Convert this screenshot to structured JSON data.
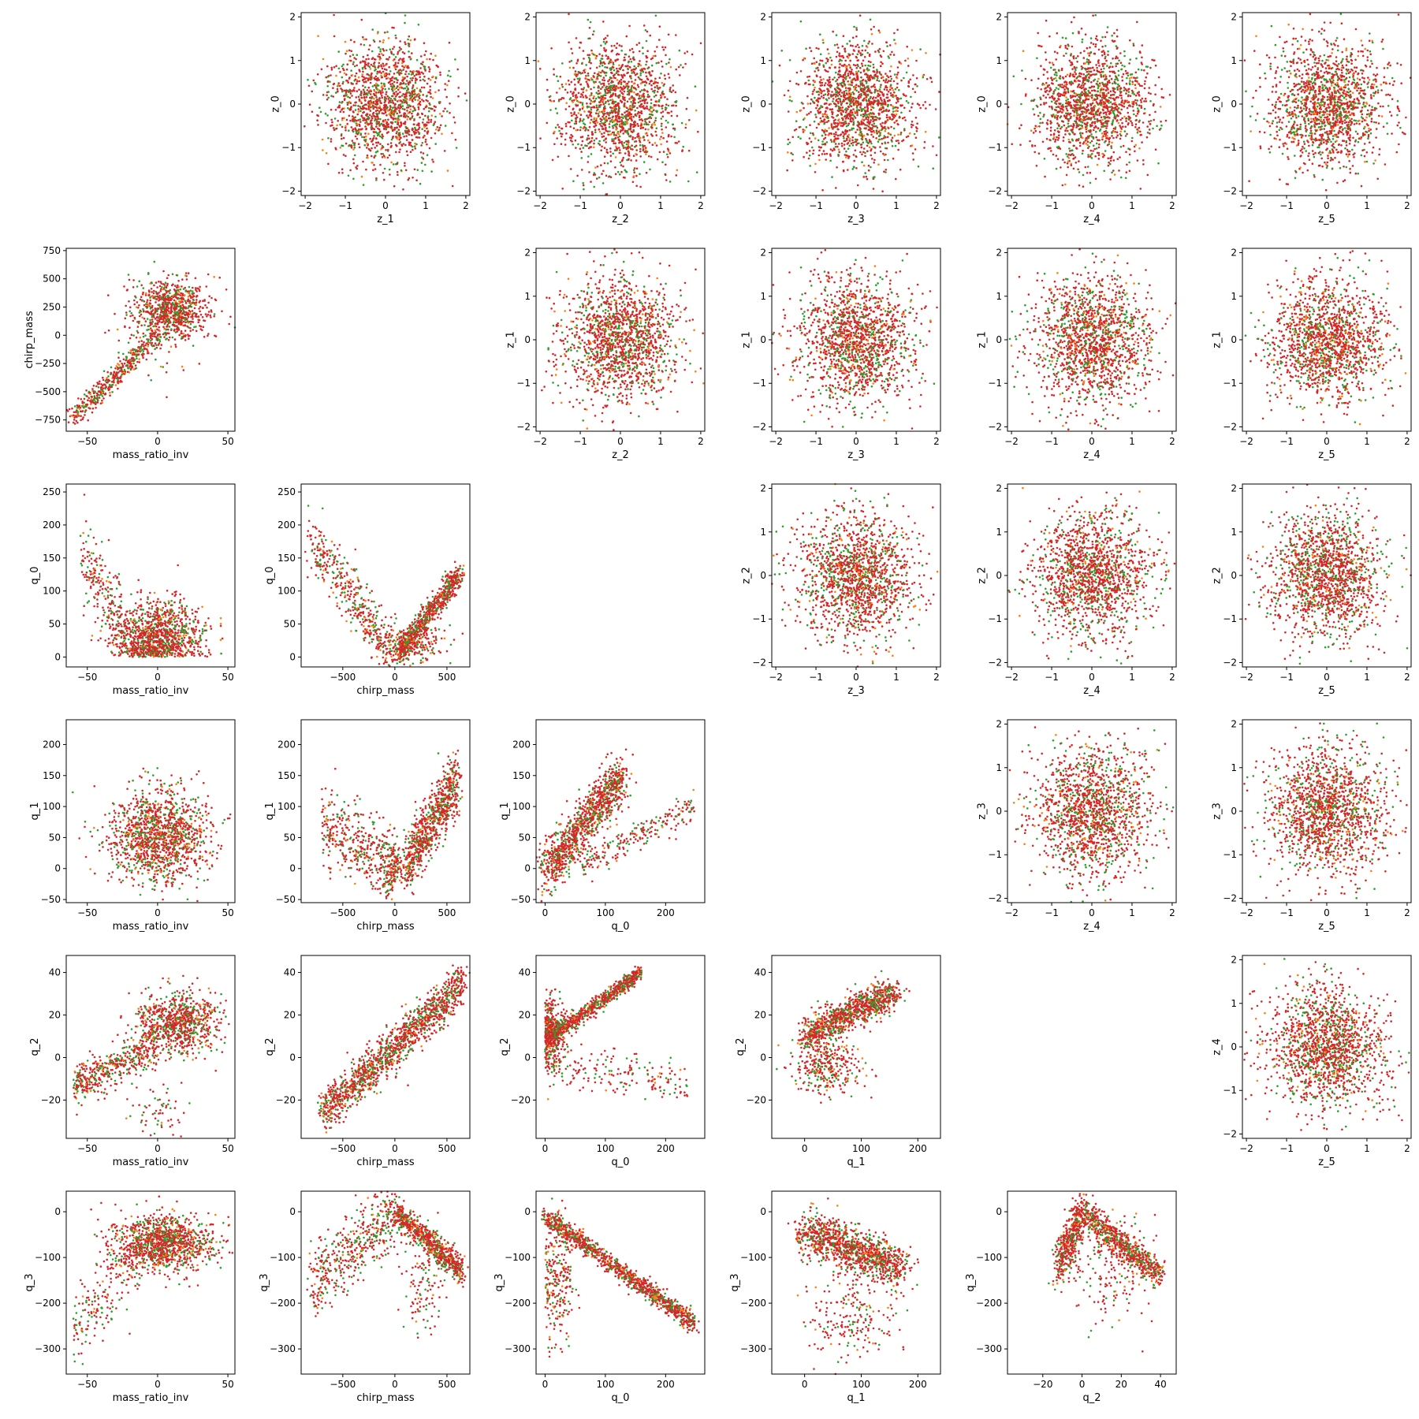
{
  "figure": {
    "type": "scatter-matrix",
    "colors": {
      "red": "#d62728",
      "green": "#2ca02c",
      "orange": "#ff7f0e",
      "axis": "#000000",
      "background": "#ffffff"
    }
  },
  "chart_data": [
    {
      "id": "p01",
      "type": "scatter",
      "row": 0,
      "col": 1,
      "xlabel": "z_1",
      "ylabel": "z_0",
      "xlim": [
        -2.1,
        2.1
      ],
      "ylim": [
        -2.1,
        2.1
      ],
      "xticks": [
        -2,
        -1,
        0,
        1,
        2
      ],
      "yticks": [
        -2,
        -1,
        0,
        1,
        2
      ],
      "shape": "gauss",
      "params": {
        "sx": 0.72,
        "sy": 0.72
      },
      "n": 1500,
      "seed": 11
    },
    {
      "id": "p02",
      "type": "scatter",
      "row": 0,
      "col": 2,
      "xlabel": "z_2",
      "ylabel": "z_0",
      "xlim": [
        -2.1,
        2.1
      ],
      "ylim": [
        -2.1,
        2.1
      ],
      "xticks": [
        -2,
        -1,
        0,
        1,
        2
      ],
      "yticks": [
        -2,
        -1,
        0,
        1,
        2
      ],
      "shape": "gauss",
      "params": {
        "sx": 0.72,
        "sy": 0.72
      },
      "n": 1500,
      "seed": 12
    },
    {
      "id": "p03",
      "type": "scatter",
      "row": 0,
      "col": 3,
      "xlabel": "z_3",
      "ylabel": "z_0",
      "xlim": [
        -2.1,
        2.1
      ],
      "ylim": [
        -2.1,
        2.1
      ],
      "xticks": [
        -2,
        -1,
        0,
        1,
        2
      ],
      "yticks": [
        -2,
        -1,
        0,
        1,
        2
      ],
      "shape": "gauss",
      "params": {
        "sx": 0.72,
        "sy": 0.72
      },
      "n": 1500,
      "seed": 13
    },
    {
      "id": "p04",
      "type": "scatter",
      "row": 0,
      "col": 4,
      "xlabel": "z_4",
      "ylabel": "z_0",
      "xlim": [
        -2.1,
        2.1
      ],
      "ylim": [
        -2.1,
        2.1
      ],
      "xticks": [
        -2,
        -1,
        0,
        1,
        2
      ],
      "yticks": [
        -2,
        -1,
        0,
        1,
        2
      ],
      "shape": "gauss",
      "params": {
        "sx": 0.72,
        "sy": 0.72
      },
      "n": 1500,
      "seed": 14
    },
    {
      "id": "p05",
      "type": "scatter",
      "row": 0,
      "col": 5,
      "xlabel": "z_5",
      "ylabel": "z_0",
      "xlim": [
        -2.1,
        2.1
      ],
      "ylim": [
        -2.1,
        2.1
      ],
      "xticks": [
        -2,
        -1,
        0,
        1,
        2
      ],
      "yticks": [
        -2,
        -1,
        0,
        1,
        2
      ],
      "shape": "gauss",
      "params": {
        "sx": 0.72,
        "sy": 0.72
      },
      "n": 1500,
      "seed": 15
    },
    {
      "id": "p10",
      "type": "scatter",
      "row": 1,
      "col": 0,
      "xlabel": "mass_ratio_inv",
      "ylabel": "chirp_mass",
      "xlim": [
        -65,
        55
      ],
      "ylim": [
        -850,
        770
      ],
      "xticks": [
        -50,
        0,
        50
      ],
      "yticks": [
        -750,
        -500,
        -250,
        0,
        250,
        500,
        750
      ],
      "shape": "mr_chirp",
      "n": 1300,
      "seed": 21
    },
    {
      "id": "p12",
      "type": "scatter",
      "row": 1,
      "col": 2,
      "xlabel": "z_2",
      "ylabel": "z_1",
      "xlim": [
        -2.1,
        2.1
      ],
      "ylim": [
        -2.1,
        2.1
      ],
      "xticks": [
        -2,
        -1,
        0,
        1,
        2
      ],
      "yticks": [
        -2,
        -1,
        0,
        1,
        2
      ],
      "shape": "gauss",
      "params": {
        "sx": 0.72,
        "sy": 0.72
      },
      "n": 1500,
      "seed": 22
    },
    {
      "id": "p13",
      "type": "scatter",
      "row": 1,
      "col": 3,
      "xlabel": "z_3",
      "ylabel": "z_1",
      "xlim": [
        -2.1,
        2.1
      ],
      "ylim": [
        -2.1,
        2.1
      ],
      "xticks": [
        -2,
        -1,
        0,
        1,
        2
      ],
      "yticks": [
        -2,
        -1,
        0,
        1,
        2
      ],
      "shape": "gauss",
      "params": {
        "sx": 0.72,
        "sy": 0.72
      },
      "n": 1500,
      "seed": 23
    },
    {
      "id": "p14",
      "type": "scatter",
      "row": 1,
      "col": 4,
      "xlabel": "z_4",
      "ylabel": "z_1",
      "xlim": [
        -2.1,
        2.1
      ],
      "ylim": [
        -2.1,
        2.1
      ],
      "xticks": [
        -2,
        -1,
        0,
        1,
        2
      ],
      "yticks": [
        -2,
        -1,
        0,
        1,
        2
      ],
      "shape": "gauss",
      "params": {
        "sx": 0.72,
        "sy": 0.72
      },
      "n": 1500,
      "seed": 24
    },
    {
      "id": "p15",
      "type": "scatter",
      "row": 1,
      "col": 5,
      "xlabel": "z_5",
      "ylabel": "z_1",
      "xlim": [
        -2.1,
        2.1
      ],
      "ylim": [
        -2.1,
        2.1
      ],
      "xticks": [
        -2,
        -1,
        0,
        1,
        2
      ],
      "yticks": [
        -2,
        -1,
        0,
        1,
        2
      ],
      "shape": "gauss",
      "params": {
        "sx": 0.72,
        "sy": 0.72
      },
      "n": 1500,
      "seed": 25
    },
    {
      "id": "p20",
      "type": "scatter",
      "row": 2,
      "col": 0,
      "xlabel": "mass_ratio_inv",
      "ylabel": "q_0",
      "xlim": [
        -65,
        55
      ],
      "ylim": [
        -15,
        262
      ],
      "xticks": [
        -50,
        0,
        50
      ],
      "yticks": [
        0,
        50,
        100,
        150,
        200,
        250
      ],
      "shape": "mr_q0",
      "n": 1300,
      "seed": 31
    },
    {
      "id": "p21",
      "type": "scatter",
      "row": 2,
      "col": 1,
      "xlabel": "chirp_mass",
      "ylabel": "q_0",
      "xlim": [
        -900,
        720
      ],
      "ylim": [
        -15,
        262
      ],
      "xticks": [
        -500,
        0,
        500
      ],
      "yticks": [
        0,
        50,
        100,
        150,
        200,
        250
      ],
      "shape": "chirp_q0",
      "n": 1300,
      "seed": 32
    },
    {
      "id": "p23",
      "type": "scatter",
      "row": 2,
      "col": 3,
      "xlabel": "z_3",
      "ylabel": "z_2",
      "xlim": [
        -2.1,
        2.1
      ],
      "ylim": [
        -2.1,
        2.1
      ],
      "xticks": [
        -2,
        -1,
        0,
        1,
        2
      ],
      "yticks": [
        -2,
        -1,
        0,
        1,
        2
      ],
      "shape": "gauss",
      "params": {
        "sx": 0.72,
        "sy": 0.72
      },
      "n": 1500,
      "seed": 33
    },
    {
      "id": "p24",
      "type": "scatter",
      "row": 2,
      "col": 4,
      "xlabel": "z_4",
      "ylabel": "z_2",
      "xlim": [
        -2.1,
        2.1
      ],
      "ylim": [
        -2.1,
        2.1
      ],
      "xticks": [
        -2,
        -1,
        0,
        1,
        2
      ],
      "yticks": [
        -2,
        -1,
        0,
        1,
        2
      ],
      "shape": "gauss",
      "params": {
        "sx": 0.72,
        "sy": 0.72
      },
      "n": 1500,
      "seed": 34
    },
    {
      "id": "p25",
      "type": "scatter",
      "row": 2,
      "col": 5,
      "xlabel": "z_5",
      "ylabel": "z_2",
      "xlim": [
        -2.1,
        2.1
      ],
      "ylim": [
        -2.1,
        2.1
      ],
      "xticks": [
        -2,
        -1,
        0,
        1,
        2
      ],
      "yticks": [
        -2,
        -1,
        0,
        1,
        2
      ],
      "shape": "gauss",
      "params": {
        "sx": 0.72,
        "sy": 0.72
      },
      "n": 1500,
      "seed": 35
    },
    {
      "id": "p30",
      "type": "scatter",
      "row": 3,
      "col": 0,
      "xlabel": "mass_ratio_inv",
      "ylabel": "q_1",
      "xlim": [
        -65,
        55
      ],
      "ylim": [
        -55,
        240
      ],
      "xticks": [
        -50,
        0,
        50
      ],
      "yticks": [
        -50,
        0,
        50,
        100,
        150,
        200
      ],
      "shape": "mr_q1",
      "n": 1300,
      "seed": 41
    },
    {
      "id": "p31",
      "type": "scatter",
      "row": 3,
      "col": 1,
      "xlabel": "chirp_mass",
      "ylabel": "q_1",
      "xlim": [
        -900,
        720
      ],
      "ylim": [
        -55,
        240
      ],
      "xticks": [
        -500,
        0,
        500
      ],
      "yticks": [
        -50,
        0,
        50,
        100,
        150,
        200
      ],
      "shape": "chirp_q1",
      "n": 1300,
      "seed": 42
    },
    {
      "id": "p32",
      "type": "scatter",
      "row": 3,
      "col": 2,
      "xlabel": "q_0",
      "ylabel": "q_1",
      "xlim": [
        -15,
        265
      ],
      "ylim": [
        -55,
        240
      ],
      "xticks": [
        0,
        100,
        200
      ],
      "yticks": [
        -50,
        0,
        50,
        100,
        150,
        200
      ],
      "shape": "q0_q1",
      "n": 1300,
      "seed": 43
    },
    {
      "id": "p34",
      "type": "scatter",
      "row": 3,
      "col": 4,
      "xlabel": "z_4",
      "ylabel": "z_3",
      "xlim": [
        -2.1,
        2.1
      ],
      "ylim": [
        -2.1,
        2.1
      ],
      "xticks": [
        -2,
        -1,
        0,
        1,
        2
      ],
      "yticks": [
        -2,
        -1,
        0,
        1,
        2
      ],
      "shape": "gauss",
      "params": {
        "sx": 0.72,
        "sy": 0.72
      },
      "n": 1500,
      "seed": 44
    },
    {
      "id": "p35",
      "type": "scatter",
      "row": 3,
      "col": 5,
      "xlabel": "z_5",
      "ylabel": "z_3",
      "xlim": [
        -2.1,
        2.1
      ],
      "ylim": [
        -2.1,
        2.1
      ],
      "xticks": [
        -2,
        -1,
        0,
        1,
        2
      ],
      "yticks": [
        -2,
        -1,
        0,
        1,
        2
      ],
      "shape": "gauss",
      "params": {
        "sx": 0.72,
        "sy": 0.72
      },
      "n": 1500,
      "seed": 45
    },
    {
      "id": "p40",
      "type": "scatter",
      "row": 4,
      "col": 0,
      "xlabel": "mass_ratio_inv",
      "ylabel": "q_2",
      "xlim": [
        -65,
        55
      ],
      "ylim": [
        -38,
        48
      ],
      "xticks": [
        -50,
        0,
        50
      ],
      "yticks": [
        -20,
        0,
        20,
        40
      ],
      "shape": "mr_q2",
      "n": 1300,
      "seed": 51
    },
    {
      "id": "p41",
      "type": "scatter",
      "row": 4,
      "col": 1,
      "xlabel": "chirp_mass",
      "ylabel": "q_2",
      "xlim": [
        -900,
        720
      ],
      "ylim": [
        -38,
        48
      ],
      "xticks": [
        -500,
        0,
        500
      ],
      "yticks": [
        -20,
        0,
        20,
        40
      ],
      "shape": "chirp_q2",
      "n": 1300,
      "seed": 52
    },
    {
      "id": "p42",
      "type": "scatter",
      "row": 4,
      "col": 2,
      "xlabel": "q_0",
      "ylabel": "q_2",
      "xlim": [
        -15,
        265
      ],
      "ylim": [
        -38,
        48
      ],
      "xticks": [
        0,
        100,
        200
      ],
      "yticks": [
        -20,
        0,
        20,
        40
      ],
      "shape": "q0_q2",
      "n": 1300,
      "seed": 53
    },
    {
      "id": "p43",
      "type": "scatter",
      "row": 4,
      "col": 3,
      "xlabel": "q_1",
      "ylabel": "q_2",
      "xlim": [
        -58,
        240
      ],
      "ylim": [
        -38,
        48
      ],
      "xticks": [
        0,
        100,
        200
      ],
      "yticks": [
        -20,
        0,
        20,
        40
      ],
      "shape": "q1_q2",
      "n": 1300,
      "seed": 54
    },
    {
      "id": "p45",
      "type": "scatter",
      "row": 4,
      "col": 5,
      "xlabel": "z_5",
      "ylabel": "z_4",
      "xlim": [
        -2.1,
        2.1
      ],
      "ylim": [
        -2.1,
        2.1
      ],
      "xticks": [
        -2,
        -1,
        0,
        1,
        2
      ],
      "yticks": [
        -2,
        -1,
        0,
        1,
        2
      ],
      "shape": "gauss",
      "params": {
        "sx": 0.72,
        "sy": 0.72
      },
      "n": 1500,
      "seed": 55
    },
    {
      "id": "p50",
      "type": "scatter",
      "row": 5,
      "col": 0,
      "xlabel": "mass_ratio_inv",
      "ylabel": "q_3",
      "xlim": [
        -65,
        55
      ],
      "ylim": [
        -355,
        45
      ],
      "xticks": [
        -50,
        0,
        50
      ],
      "yticks": [
        -300,
        -200,
        -100,
        0
      ],
      "shape": "mr_q3",
      "n": 1300,
      "seed": 61
    },
    {
      "id": "p51",
      "type": "scatter",
      "row": 5,
      "col": 1,
      "xlabel": "chirp_mass",
      "ylabel": "q_3",
      "xlim": [
        -900,
        720
      ],
      "ylim": [
        -355,
        45
      ],
      "xticks": [
        -500,
        0,
        500
      ],
      "yticks": [
        -300,
        -200,
        -100,
        0
      ],
      "shape": "chirp_q3",
      "n": 1300,
      "seed": 62
    },
    {
      "id": "p52",
      "type": "scatter",
      "row": 5,
      "col": 2,
      "xlabel": "q_0",
      "ylabel": "q_3",
      "xlim": [
        -15,
        265
      ],
      "ylim": [
        -355,
        45
      ],
      "xticks": [
        0,
        100,
        200
      ],
      "yticks": [
        -300,
        -200,
        -100,
        0
      ],
      "shape": "q0_q3",
      "n": 1300,
      "seed": 63
    },
    {
      "id": "p53",
      "type": "scatter",
      "row": 5,
      "col": 3,
      "xlabel": "q_1",
      "ylabel": "q_3",
      "xlim": [
        -58,
        240
      ],
      "ylim": [
        -355,
        45
      ],
      "xticks": [
        0,
        100,
        200
      ],
      "yticks": [
        -300,
        -200,
        -100,
        0
      ],
      "shape": "q1_q3",
      "n": 1300,
      "seed": 64
    },
    {
      "id": "p54",
      "type": "scatter",
      "row": 5,
      "col": 4,
      "xlabel": "q_2",
      "ylabel": "q_3",
      "xlim": [
        -38,
        48
      ],
      "ylim": [
        -355,
        45
      ],
      "xticks": [
        -20,
        0,
        20,
        40
      ],
      "yticks": [
        -300,
        -200,
        -100,
        0
      ],
      "shape": "q2_q3",
      "n": 1300,
      "seed": 65
    }
  ]
}
